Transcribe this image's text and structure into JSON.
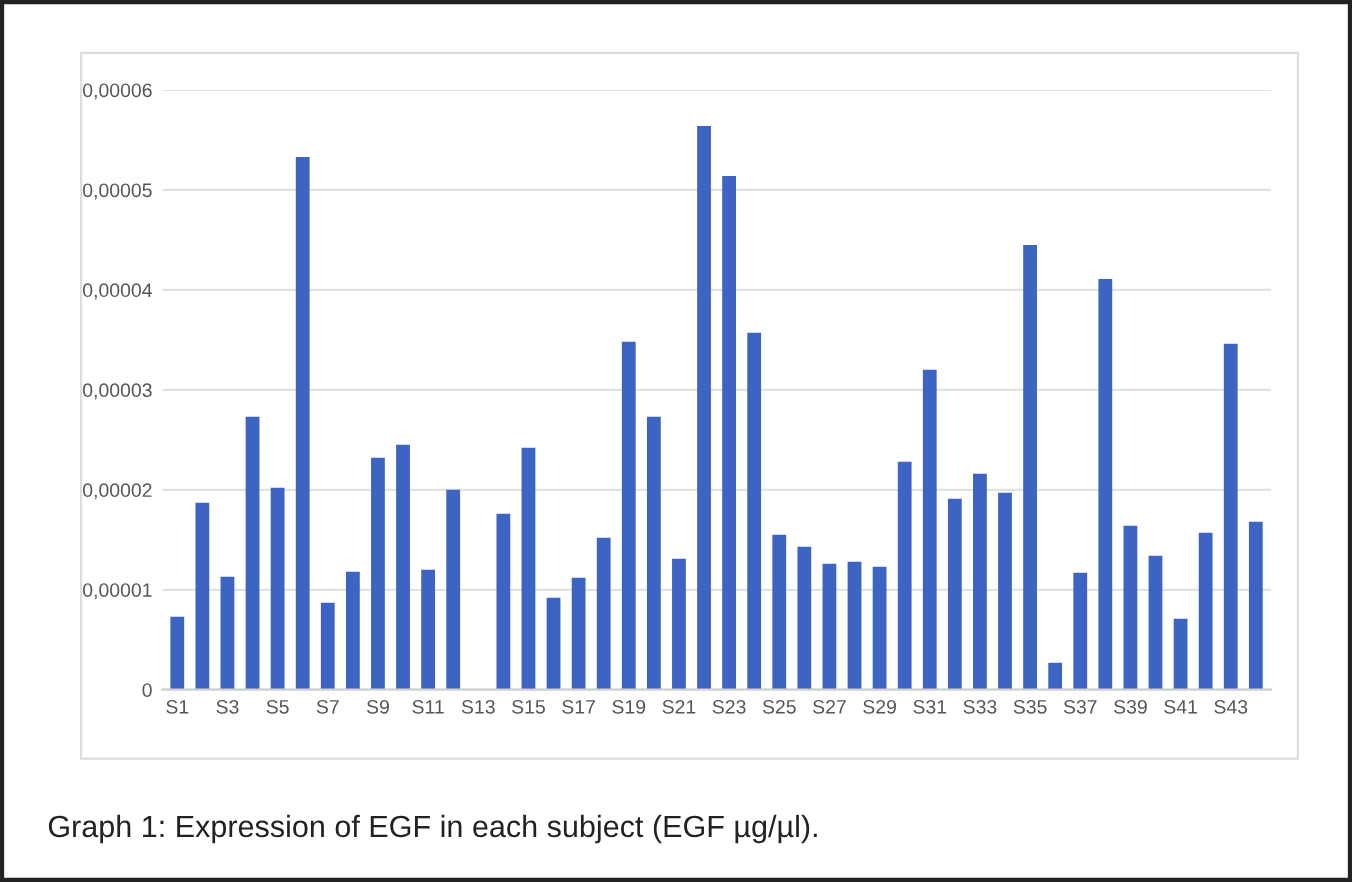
{
  "chart_data": {
    "type": "bar",
    "categories": [
      "S1",
      null,
      "S3",
      null,
      "S5",
      null,
      "S7",
      null,
      "S9",
      null,
      "S11",
      null,
      "S13",
      null,
      "S15",
      null,
      "S17",
      null,
      "S19",
      null,
      "S21",
      null,
      "S23",
      null,
      "S25",
      null,
      "S27",
      null,
      "S29",
      null,
      "S31",
      null,
      "S33",
      null,
      "S35",
      null,
      "S37",
      null,
      "S39",
      null,
      "S41",
      null,
      "S43",
      null
    ],
    "values": [
      7.3e-06,
      1.87e-05,
      1.13e-05,
      2.73e-05,
      2.02e-05,
      5.33e-05,
      8.7e-06,
      1.18e-05,
      2.32e-05,
      2.45e-05,
      1.2e-05,
      2e-05,
      0,
      1.76e-05,
      2.42e-05,
      9.2e-06,
      1.12e-05,
      1.52e-05,
      3.48e-05,
      2.73e-05,
      1.31e-05,
      5.64e-05,
      5.14e-05,
      3.57e-05,
      1.55e-05,
      1.43e-05,
      1.26e-05,
      1.28e-05,
      1.23e-05,
      2.28e-05,
      3.2e-05,
      1.91e-05,
      2.16e-05,
      1.97e-05,
      4.45e-05,
      2.7e-06,
      1.17e-05,
      4.11e-05,
      1.64e-05,
      1.34e-05,
      7.1e-06,
      1.57e-05,
      3.46e-05,
      1.68e-05
    ],
    "color": "#3d64c2",
    "ylim": [
      0,
      6e-05
    ],
    "yticks": [
      0,
      {
        "value": 1e-05,
        "label": "0,00001"
      },
      {
        "value": 2e-05,
        "label": "0,00002"
      },
      {
        "value": 3e-05,
        "label": "0,00003"
      },
      {
        "value": 4e-05,
        "label": "0,00004"
      },
      {
        "value": 5e-05,
        "label": "0,00005"
      },
      {
        "value": 6e-05,
        "label": "0,00006"
      }
    ],
    "grid": "y",
    "annotations": [
      "Graph 1: Expression of EGF in each subject (EGF µg/µl)."
    ]
  }
}
